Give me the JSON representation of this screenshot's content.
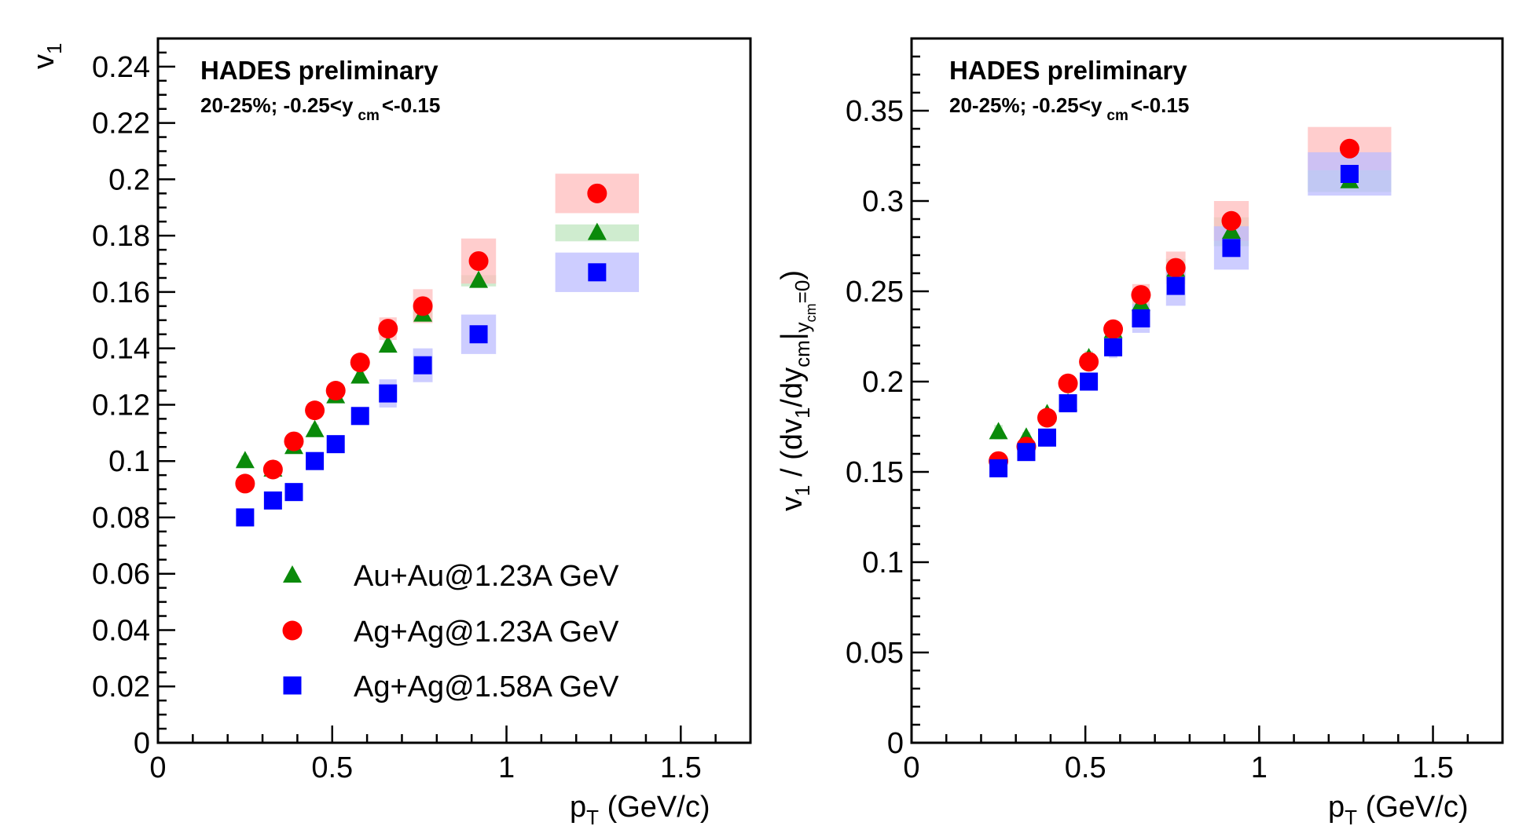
{
  "colors": {
    "Au+Au@1.23A GeV": "#0a8a0a",
    "Ag+Ag@1.23A GeV": "#ff0000",
    "Ag+Ag@1.58A GeV": "#0000ff",
    "Au+Au@1.23A GeV_sys": "#bfe6bf",
    "Ag+Ag@1.23A GeV_sys": "#ffbcbc",
    "Ag+Ag@1.58A GeV_sys": "#bcbcff",
    "baseline": "#8b1a1a"
  },
  "legend": {
    "placement": "bottom-center",
    "entries": [
      {
        "label": "Au+Au@1.23A GeV",
        "marker": "triangle"
      },
      {
        "label": "Ag+Ag@1.23A GeV",
        "marker": "circle"
      },
      {
        "label": "Ag+Ag@1.58A GeV",
        "marker": "square"
      }
    ]
  },
  "chart_data": [
    {
      "type": "scatter",
      "annotation_line1": "HADES preliminary",
      "annotation_line2_main": "20-25%; -0.25<y",
      "annotation_line2_sub": "cm",
      "annotation_line2_end": "<-0.15",
      "xlabel_main": "p",
      "xlabel_sub": "T",
      "xlabel_end": " (GeV/c)",
      "ylabel_main": "v",
      "ylabel_sub": "1",
      "xlim": [
        0,
        1.7
      ],
      "ylim": [
        0,
        0.25
      ],
      "xticks": [
        0,
        0.5,
        1,
        1.5
      ],
      "xtick_labels": [
        "0",
        "0.5",
        "1",
        "1.5"
      ],
      "xtick_step_minor": 0.1,
      "yticks": [
        0,
        0.02,
        0.04,
        0.06,
        0.08,
        0.1,
        0.12,
        0.14,
        0.16,
        0.18,
        0.2,
        0.22,
        0.24
      ],
      "ytick_labels": [
        "0",
        "0.02",
        "0.04",
        "0.06",
        "0.08",
        "0.1",
        "0.12",
        "0.14",
        "0.16",
        "0.18",
        "0.2",
        "0.22",
        "0.24"
      ],
      "ytick_step_minor": 0.005,
      "series": [
        {
          "name": "Au+Au@1.23A GeV",
          "marker": "triangle",
          "x": [
            0.25,
            0.33,
            0.39,
            0.45,
            0.51,
            0.58,
            0.66,
            0.76,
            0.92,
            1.26
          ],
          "y": [
            0.1,
            0.097,
            0.105,
            0.111,
            0.123,
            0.13,
            0.141,
            0.152,
            0.164,
            0.181
          ],
          "sys": [
            0.002,
            0.002,
            0.002,
            0.002,
            0.002,
            0.002,
            0.002,
            0.002,
            0.002,
            0.003
          ],
          "sys_halfwidth": [
            0.012,
            0.012,
            0.012,
            0.012,
            0.012,
            0.012,
            0.012,
            0.028,
            0.05,
            0.12
          ]
        },
        {
          "name": "Ag+Ag@1.23A GeV",
          "marker": "circle",
          "x": [
            0.25,
            0.33,
            0.39,
            0.45,
            0.51,
            0.58,
            0.66,
            0.76,
            0.92,
            1.26
          ],
          "y": [
            0.092,
            0.097,
            0.107,
            0.118,
            0.125,
            0.135,
            0.147,
            0.155,
            0.171,
            0.195
          ],
          "sys": [
            0.002,
            0.002,
            0.002,
            0.002,
            0.002,
            0.002,
            0.004,
            0.006,
            0.008,
            0.007
          ],
          "sys_halfwidth": [
            0.012,
            0.012,
            0.012,
            0.012,
            0.012,
            0.012,
            0.025,
            0.028,
            0.05,
            0.12
          ]
        },
        {
          "name": "Ag+Ag@1.58A GeV",
          "marker": "square",
          "x": [
            0.25,
            0.33,
            0.39,
            0.45,
            0.51,
            0.58,
            0.66,
            0.76,
            0.92,
            1.26
          ],
          "y": [
            0.08,
            0.086,
            0.089,
            0.1,
            0.106,
            0.116,
            0.124,
            0.134,
            0.145,
            0.167
          ],
          "sys": [
            0.001,
            0.001,
            0.001,
            0.002,
            0.002,
            0.002,
            0.005,
            0.006,
            0.007,
            0.007
          ],
          "sys_halfwidth": [
            0.012,
            0.012,
            0.012,
            0.012,
            0.012,
            0.012,
            0.025,
            0.028,
            0.05,
            0.12
          ]
        }
      ]
    },
    {
      "type": "scatter",
      "annotation_line1": "HADES preliminary",
      "annotation_line2_main": "20-25%; -0.25<y",
      "annotation_line2_sub": "cm",
      "annotation_line2_end": "<-0.15",
      "xlabel_main": "p",
      "xlabel_sub": "T",
      "xlabel_end": " (GeV/c)",
      "ylabel_parts": [
        {
          "t": "v",
          "s": "main"
        },
        {
          "t": "1",
          "s": "sub"
        },
        {
          "t": " / (dv",
          "s": "main"
        },
        {
          "t": "1",
          "s": "sub"
        },
        {
          "t": "/dy",
          "s": "main"
        },
        {
          "t": "cm",
          "s": "sub"
        },
        {
          "t": "|",
          "s": "main"
        },
        {
          "t": "y",
          "s": "sub"
        },
        {
          "t": "cm",
          "s": "subsub"
        },
        {
          "t": "=0",
          "s": "sub"
        },
        {
          "t": ")",
          "s": "main"
        }
      ],
      "xlim": [
        0,
        1.7
      ],
      "ylim": [
        0,
        0.39
      ],
      "xticks": [
        0,
        0.5,
        1,
        1.5
      ],
      "xtick_labels": [
        "0",
        "0.5",
        "1",
        "1.5"
      ],
      "xtick_step_minor": 0.1,
      "yticks": [
        0,
        0.05,
        0.1,
        0.15,
        0.2,
        0.25,
        0.3,
        0.35
      ],
      "ytick_labels": [
        "0",
        "0.05",
        "0.1",
        "0.15",
        "0.2",
        "0.25",
        "0.3",
        "0.35"
      ],
      "ytick_step_minor": 0.01,
      "series": [
        {
          "name": "Au+Au@1.23A GeV",
          "marker": "triangle",
          "x": [
            0.25,
            0.33,
            0.39,
            0.45,
            0.51,
            0.58,
            0.66,
            0.76,
            0.92,
            1.26
          ],
          "y": [
            0.172,
            0.169,
            0.182,
            0.188,
            0.213,
            0.228,
            0.243,
            0.262,
            0.283,
            0.311
          ],
          "sys": [
            0.004,
            0.003,
            0.003,
            0.004,
            0.004,
            0.004,
            0.006,
            0.006,
            0.008,
            0.006
          ],
          "sys_halfwidth": [
            0.012,
            0.012,
            0.012,
            0.012,
            0.012,
            0.012,
            0.025,
            0.028,
            0.05,
            0.12
          ]
        },
        {
          "name": "Ag+Ag@1.23A GeV",
          "marker": "circle",
          "x": [
            0.25,
            0.33,
            0.39,
            0.45,
            0.51,
            0.58,
            0.66,
            0.76,
            0.92,
            1.26
          ],
          "y": [
            0.156,
            0.164,
            0.18,
            0.199,
            0.211,
            0.229,
            0.248,
            0.263,
            0.289,
            0.329
          ],
          "sys": [
            0.003,
            0.003,
            0.003,
            0.004,
            0.004,
            0.005,
            0.006,
            0.009,
            0.011,
            0.012
          ],
          "sys_halfwidth": [
            0.012,
            0.012,
            0.012,
            0.012,
            0.012,
            0.012,
            0.025,
            0.028,
            0.05,
            0.12
          ]
        },
        {
          "name": "Ag+Ag@1.58A GeV",
          "marker": "square",
          "x": [
            0.25,
            0.33,
            0.39,
            0.45,
            0.51,
            0.58,
            0.66,
            0.76,
            0.92,
            1.26
          ],
          "y": [
            0.152,
            0.161,
            0.169,
            0.188,
            0.2,
            0.219,
            0.235,
            0.253,
            0.274,
            0.315
          ],
          "sys": [
            0.002,
            0.002,
            0.003,
            0.004,
            0.004,
            0.006,
            0.008,
            0.011,
            0.012,
            0.012
          ],
          "sys_halfwidth": [
            0.012,
            0.012,
            0.012,
            0.012,
            0.012,
            0.012,
            0.025,
            0.028,
            0.05,
            0.12
          ]
        }
      ]
    }
  ]
}
